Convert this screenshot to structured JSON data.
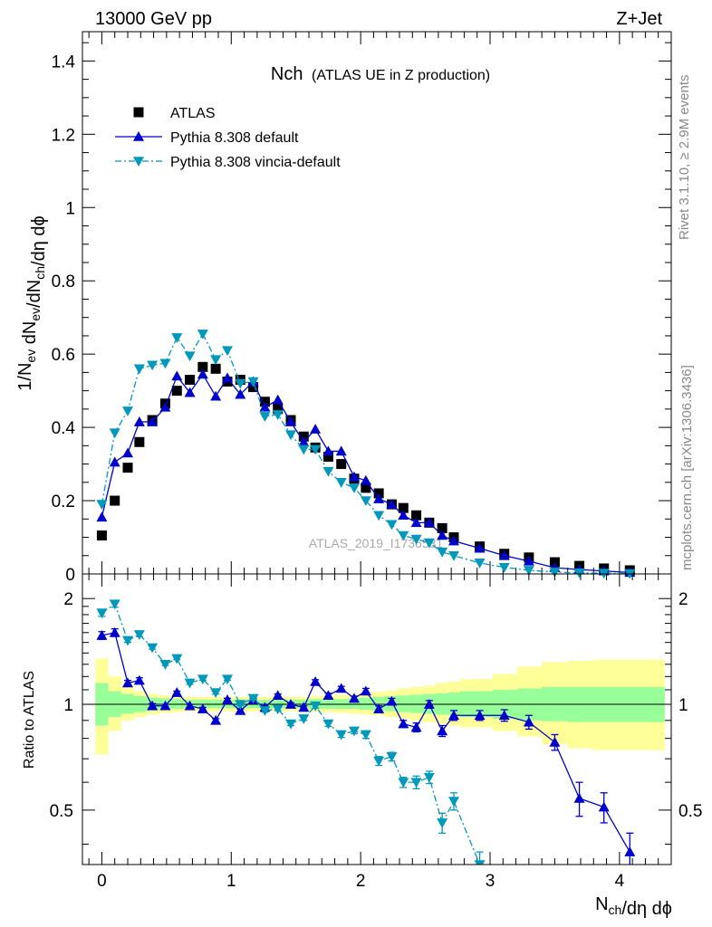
{
  "header": {
    "left": "13000 GeV pp",
    "right": "Z+Jet"
  },
  "side_labels": {
    "rivet": "Rivet 3.1.10, ≥ 2.9M events",
    "mcplots": "mcplots.cern.ch [arXiv:1306.3436]"
  },
  "watermark": "ATLAS_2019_I1736531",
  "chart_data": [
    {
      "type": "scatter",
      "title": "Nch",
      "subtitle": "(ATLAS UE in Z production)",
      "xlabel": "N_ch/dη dϕ",
      "ylabel": "1/N_ev dN_ev/dN_ch/dη dϕ",
      "xlim": [
        -0.15,
        4.4
      ],
      "ylim": [
        0,
        1.48
      ],
      "yticks": [
        0,
        0.2,
        0.4,
        0.6,
        0.8,
        1,
        1.2,
        1.4
      ],
      "ytick_labels": [
        "0",
        "0.2",
        "0.4",
        "0.6",
        "0.8",
        "1",
        "1.2",
        "1.4"
      ],
      "legend_position": "top-left",
      "series": [
        {
          "name": "ATLAS",
          "color": "#000000",
          "marker": "square",
          "x": [
            0.0,
            0.1,
            0.2,
            0.29,
            0.39,
            0.49,
            0.58,
            0.68,
            0.78,
            0.88,
            0.97,
            1.07,
            1.17,
            1.26,
            1.36,
            1.46,
            1.56,
            1.65,
            1.75,
            1.85,
            1.95,
            2.04,
            2.14,
            2.24,
            2.33,
            2.43,
            2.53,
            2.63,
            2.72,
            2.92,
            3.11,
            3.3,
            3.5,
            3.69,
            3.88,
            4.08
          ],
          "y": [
            0.105,
            0.2,
            0.29,
            0.36,
            0.42,
            0.465,
            0.5,
            0.53,
            0.565,
            0.56,
            0.525,
            0.53,
            0.51,
            0.47,
            0.45,
            0.42,
            0.375,
            0.345,
            0.32,
            0.3,
            0.26,
            0.235,
            0.22,
            0.19,
            0.18,
            0.16,
            0.14,
            0.125,
            0.1,
            0.075,
            0.055,
            0.045,
            0.032,
            0.022,
            0.015,
            0.01
          ]
        },
        {
          "name": "Pythia 8.308 default",
          "color": "#0000cc",
          "marker": "triangle-up",
          "x": [
            0.0,
            0.1,
            0.2,
            0.29,
            0.39,
            0.49,
            0.58,
            0.68,
            0.78,
            0.88,
            0.97,
            1.07,
            1.17,
            1.26,
            1.36,
            1.46,
            1.56,
            1.65,
            1.75,
            1.85,
            1.95,
            2.04,
            2.14,
            2.24,
            2.33,
            2.43,
            2.53,
            2.63,
            2.72,
            2.92,
            3.11,
            3.3,
            3.5,
            3.69,
            3.88,
            4.08
          ],
          "y": [
            0.155,
            0.305,
            0.33,
            0.415,
            0.415,
            0.455,
            0.54,
            0.495,
            0.545,
            0.485,
            0.535,
            0.49,
            0.525,
            0.455,
            0.475,
            0.415,
            0.36,
            0.395,
            0.335,
            0.335,
            0.265,
            0.255,
            0.205,
            0.19,
            0.16,
            0.14,
            0.14,
            0.105,
            0.09,
            0.07,
            0.05,
            0.035,
            0.017,
            0.012,
            0.008,
            0.004
          ]
        },
        {
          "name": "Pythia 8.308 vincia-default",
          "color": "#0099bb",
          "marker": "triangle-down",
          "x": [
            0.0,
            0.1,
            0.2,
            0.29,
            0.39,
            0.49,
            0.58,
            0.68,
            0.78,
            0.88,
            0.97,
            1.07,
            1.17,
            1.26,
            1.36,
            1.46,
            1.56,
            1.65,
            1.75,
            1.85,
            1.95,
            2.04,
            2.14,
            2.24,
            2.33,
            2.43,
            2.53,
            2.63,
            2.72,
            2.92,
            3.11,
            3.3,
            3.5,
            3.69,
            3.88,
            4.08
          ],
          "y": [
            0.19,
            0.385,
            0.445,
            0.56,
            0.57,
            0.575,
            0.645,
            0.595,
            0.655,
            0.585,
            0.61,
            0.52,
            0.525,
            0.43,
            0.435,
            0.38,
            0.34,
            0.34,
            0.28,
            0.25,
            0.235,
            0.2,
            0.16,
            0.135,
            0.105,
            0.095,
            0.085,
            0.06,
            0.05,
            0.03,
            0.018,
            0.01,
            0.005,
            0.003,
            0.002,
            0.001
          ]
        }
      ]
    },
    {
      "type": "line",
      "ylabel": "Ratio to ATLAS",
      "xlabel": "N_ch/dη dϕ",
      "xlim": [
        -0.15,
        4.4
      ],
      "ylim": [
        0.35,
        2.35
      ],
      "yscale": "log",
      "yticks": [
        0.5,
        1,
        2
      ],
      "ytick_labels": [
        "0.5",
        "1",
        "2"
      ],
      "xticks": [
        0,
        1,
        2,
        3,
        4
      ],
      "xtick_labels": [
        "0",
        "1",
        "2",
        "3",
        "4"
      ],
      "reference_line": 1,
      "bands": {
        "x_edges": [
          -0.05,
          0.05,
          0.15,
          0.25,
          0.34,
          0.44,
          0.54,
          0.63,
          0.73,
          0.83,
          0.92,
          1.02,
          1.12,
          1.22,
          1.31,
          1.41,
          1.51,
          1.6,
          1.7,
          1.8,
          1.9,
          1.99,
          2.09,
          2.19,
          2.28,
          2.38,
          2.48,
          2.58,
          2.67,
          2.77,
          3.02,
          3.21,
          3.4,
          3.6,
          3.79,
          3.98,
          4.17,
          4.35
        ],
        "stat_color": "#99ff99",
        "syst_color": "#ffff99",
        "stat_low": [
          0.87,
          0.92,
          0.94,
          0.95,
          0.96,
          0.97,
          0.97,
          0.975,
          0.975,
          0.975,
          0.975,
          0.975,
          0.975,
          0.975,
          0.975,
          0.975,
          0.975,
          0.97,
          0.97,
          0.97,
          0.97,
          0.965,
          0.96,
          0.955,
          0.95,
          0.945,
          0.94,
          0.935,
          0.93,
          0.92,
          0.91,
          0.9,
          0.895,
          0.89,
          0.89,
          0.89,
          0.89
        ],
        "stat_high": [
          1.15,
          1.09,
          1.07,
          1.055,
          1.045,
          1.04,
          1.035,
          1.03,
          1.03,
          1.03,
          1.03,
          1.03,
          1.03,
          1.03,
          1.03,
          1.03,
          1.03,
          1.035,
          1.035,
          1.035,
          1.04,
          1.045,
          1.05,
          1.055,
          1.06,
          1.065,
          1.07,
          1.075,
          1.08,
          1.09,
          1.1,
          1.11,
          1.12,
          1.12,
          1.12,
          1.12,
          1.12
        ],
        "syst_low": [
          0.72,
          0.84,
          0.9,
          0.92,
          0.935,
          0.945,
          0.95,
          0.955,
          0.955,
          0.955,
          0.955,
          0.955,
          0.955,
          0.955,
          0.955,
          0.955,
          0.955,
          0.95,
          0.95,
          0.945,
          0.94,
          0.935,
          0.93,
          0.92,
          0.91,
          0.9,
          0.89,
          0.88,
          0.87,
          0.86,
          0.84,
          0.81,
          0.77,
          0.75,
          0.74,
          0.74,
          0.74
        ],
        "syst_high": [
          1.35,
          1.2,
          1.12,
          1.09,
          1.07,
          1.06,
          1.055,
          1.05,
          1.05,
          1.05,
          1.05,
          1.05,
          1.05,
          1.05,
          1.05,
          1.05,
          1.05,
          1.055,
          1.06,
          1.065,
          1.07,
          1.075,
          1.085,
          1.095,
          1.11,
          1.12,
          1.13,
          1.15,
          1.16,
          1.18,
          1.22,
          1.28,
          1.32,
          1.33,
          1.34,
          1.34,
          1.34
        ]
      },
      "series": [
        {
          "name": "Pythia 8.308 default",
          "color": "#0000cc",
          "marker": "triangle-up",
          "x": [
            0.0,
            0.1,
            0.2,
            0.29,
            0.39,
            0.49,
            0.58,
            0.68,
            0.78,
            0.88,
            0.97,
            1.07,
            1.17,
            1.26,
            1.36,
            1.46,
            1.56,
            1.65,
            1.75,
            1.85,
            1.95,
            2.04,
            2.14,
            2.24,
            2.33,
            2.43,
            2.53,
            2.63,
            2.72,
            2.92,
            3.11,
            3.3,
            3.5,
            3.69,
            3.88,
            4.08
          ],
          "y": [
            1.57,
            1.6,
            1.15,
            1.17,
            0.99,
            0.99,
            1.08,
            0.99,
            0.97,
            0.9,
            1.03,
            0.96,
            1.03,
            0.98,
            1.06,
            1.0,
            0.98,
            1.16,
            1.06,
            1.11,
            1.04,
            1.09,
            0.97,
            1.02,
            0.88,
            0.86,
            1.0,
            0.84,
            0.93,
            0.93,
            0.93,
            0.89,
            0.78,
            0.54,
            0.51,
            0.38
          ],
          "yerr": [
            0.04,
            0.04,
            0.02,
            0.02,
            0.015,
            0.01,
            0.01,
            0.01,
            0.01,
            0.01,
            0.01,
            0.01,
            0.01,
            0.01,
            0.01,
            0.01,
            0.01,
            0.015,
            0.015,
            0.015,
            0.015,
            0.02,
            0.02,
            0.02,
            0.02,
            0.025,
            0.025,
            0.03,
            0.03,
            0.03,
            0.035,
            0.04,
            0.04,
            0.06,
            0.05,
            0.05
          ]
        },
        {
          "name": "Pythia 8.308 vincia-default",
          "color": "#0099bb",
          "marker": "triangle-down",
          "x": [
            0.0,
            0.1,
            0.2,
            0.29,
            0.39,
            0.49,
            0.58,
            0.68,
            0.78,
            0.88,
            0.97,
            1.07,
            1.17,
            1.26,
            1.36,
            1.46,
            1.56,
            1.65,
            1.75,
            1.85,
            1.95,
            2.04,
            2.14,
            2.24,
            2.33,
            2.43,
            2.53,
            2.63,
            2.72,
            2.92
          ],
          "y": [
            1.82,
            1.93,
            1.52,
            1.58,
            1.45,
            1.3,
            1.35,
            1.15,
            1.18,
            1.08,
            1.18,
            1.0,
            1.04,
            0.96,
            0.97,
            0.88,
            0.91,
            0.99,
            0.88,
            0.82,
            0.84,
            0.82,
            0.69,
            0.71,
            0.6,
            0.6,
            0.62,
            0.46,
            0.53,
            0.35
          ],
          "yerr": [
            0.04,
            0.04,
            0.02,
            0.02,
            0.015,
            0.01,
            0.01,
            0.01,
            0.01,
            0.01,
            0.01,
            0.01,
            0.01,
            0.01,
            0.01,
            0.01,
            0.01,
            0.015,
            0.015,
            0.015,
            0.015,
            0.02,
            0.02,
            0.02,
            0.02,
            0.025,
            0.025,
            0.03,
            0.03,
            0.03
          ]
        }
      ]
    }
  ]
}
